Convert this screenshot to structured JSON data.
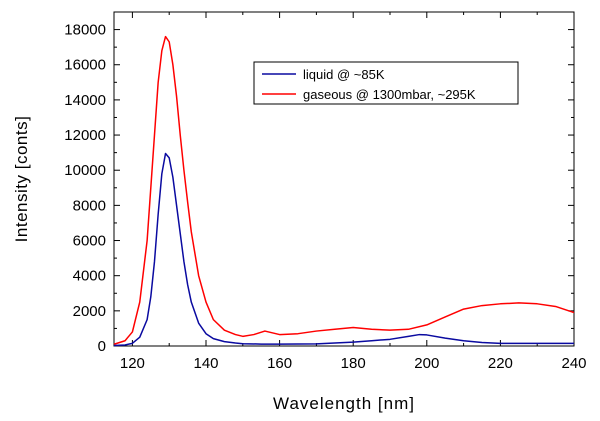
{
  "chart_data": {
    "type": "line",
    "title": "",
    "xlabel": "Wavelength [nm]",
    "ylabel": "Intensity [conts]",
    "xlim": [
      115,
      240
    ],
    "ylim": [
      0,
      19000
    ],
    "x_ticks": [
      120,
      140,
      160,
      180,
      200,
      220,
      240
    ],
    "y_ticks": [
      0,
      2000,
      4000,
      6000,
      8000,
      10000,
      12000,
      14000,
      16000,
      18000
    ],
    "legend_position": "top-right",
    "grid": false,
    "series": [
      {
        "name": "liquid @ ~85K",
        "color": "#0a0aa0",
        "x": [
          115,
          118,
          120,
          122,
          124,
          125,
          126,
          127,
          128,
          129,
          130,
          131,
          132,
          133,
          134,
          135,
          136,
          138,
          140,
          142,
          145,
          148,
          150,
          155,
          160,
          170,
          180,
          185,
          190,
          195,
          198,
          200,
          205,
          210,
          215,
          220,
          230,
          240
        ],
        "y": [
          30,
          60,
          150,
          500,
          1500,
          2800,
          4800,
          7500,
          9800,
          10950,
          10700,
          9600,
          8000,
          6400,
          4800,
          3500,
          2500,
          1300,
          700,
          420,
          250,
          170,
          130,
          110,
          110,
          120,
          220,
          300,
          380,
          550,
          650,
          630,
          450,
          300,
          200,
          150,
          150,
          150
        ]
      },
      {
        "name": "gaseous @ 1300mbar, ~295K",
        "color": "#ff0000",
        "x": [
          115,
          118,
          120,
          122,
          124,
          126,
          127,
          128,
          129,
          130,
          131,
          132,
          133,
          134,
          135,
          136,
          138,
          140,
          142,
          145,
          148,
          150,
          153,
          156,
          158,
          160,
          165,
          170,
          175,
          180,
          185,
          190,
          195,
          200,
          205,
          210,
          215,
          220,
          225,
          230,
          235,
          240
        ],
        "y": [
          100,
          300,
          800,
          2500,
          6000,
          12000,
          15000,
          16800,
          17600,
          17300,
          16000,
          14200,
          12000,
          10000,
          8200,
          6500,
          4000,
          2500,
          1500,
          900,
          650,
          550,
          650,
          850,
          750,
          650,
          700,
          850,
          950,
          1050,
          950,
          900,
          950,
          1200,
          1650,
          2100,
          2300,
          2400,
          2450,
          2400,
          2250,
          1900
        ]
      }
    ]
  }
}
